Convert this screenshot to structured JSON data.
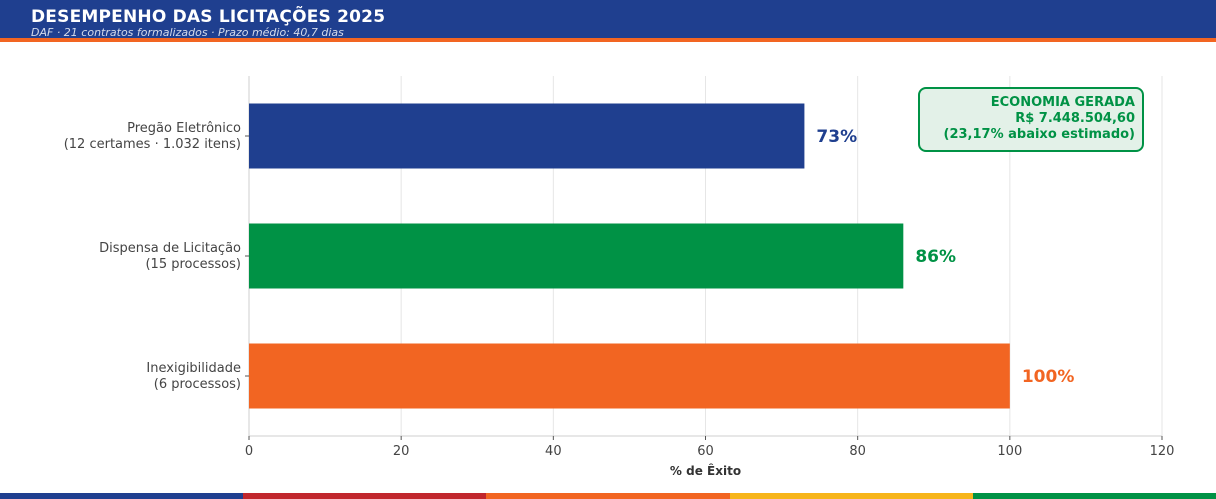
{
  "header": {
    "title": "DESEMPENHO DAS LICITAÇÕES 2025",
    "subtitle": "DAF · 21 contratos formalizados · Prazo médio: 40,7 dias",
    "bg_color": "#1f3f8f",
    "accent_color": "#f26522"
  },
  "chart_data": {
    "type": "bar",
    "orientation": "horizontal",
    "categories": [
      [
        "Pregão Eletrônico",
        "(12 certames · 1.032 itens)"
      ],
      [
        "Dispensa de Licitação",
        "(15 processos)"
      ],
      [
        "Inexigibilidade",
        "(6 processos)"
      ]
    ],
    "values": [
      73,
      86,
      100
    ],
    "value_labels": [
      "73%",
      "86%",
      "100%"
    ],
    "colors": [
      "#1f3f8f",
      "#009245",
      "#f26522"
    ],
    "xlabel": "% de Êxito",
    "xlim": [
      0,
      120
    ],
    "xticks": [
      0,
      20,
      40,
      60,
      80,
      100,
      120
    ],
    "grid": "vertical",
    "annotation": {
      "lines": [
        "ECONOMIA GERADA",
        "R$ 7.448.504,60",
        "(23,17% abaixo estimado)"
      ],
      "placement": "top-right",
      "text_color": "#009245",
      "bg_color": "#e3f1e8"
    }
  },
  "footer_stripe": [
    "#1f3f8f",
    "#c1272d",
    "#f26522",
    "#f7b51b",
    "#009245"
  ]
}
